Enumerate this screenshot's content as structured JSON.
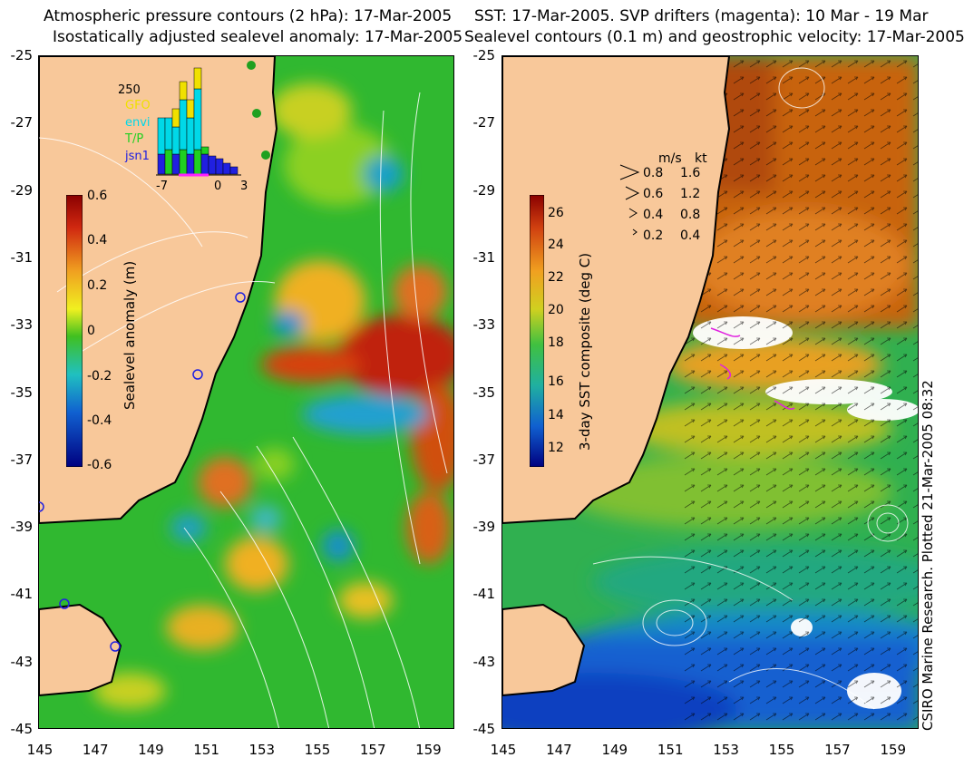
{
  "left_panel": {
    "title_line1": "Atmospheric pressure contours (2 hPa): 17-Mar-2005",
    "title_line2": "Isostatically adjusted sealevel anomaly: 17-Mar-2005",
    "colorbar_label": "Sealevel anomaly (m)",
    "colorbar_ticks": [
      "0.6",
      "0.4",
      "0.2",
      "0",
      "-0.2",
      "-0.4",
      "-0.6"
    ],
    "inset": {
      "ymax_label": "250",
      "legend": [
        {
          "name": "GFO",
          "color": "#f0e000"
        },
        {
          "name": "envi",
          "color": "#00d8e8"
        },
        {
          "name": "T/P",
          "color": "#20d020"
        },
        {
          "name": "jsn1",
          "color": "#2020e0"
        }
      ],
      "x_ticks": [
        "-7",
        "0",
        "3"
      ]
    }
  },
  "right_panel": {
    "title_line1": "SST: 17-Mar-2005. SVP drifters (magenta): 10 Mar - 19 Mar",
    "title_line2": "Sealevel contours (0.1 m) and geostrophic velocity: 17-Mar-2005.",
    "colorbar_label": "3-day SST composite (deg C)",
    "colorbar_ticks": [
      "26",
      "24",
      "22",
      "20",
      "18",
      "16",
      "14",
      "12"
    ],
    "velocity_legend": {
      "header_ms": "m/s",
      "header_kt": "kt",
      "rows": [
        {
          "ms": "0.8",
          "kt": "1.6"
        },
        {
          "ms": "0.6",
          "kt": "1.2"
        },
        {
          "ms": "0.4",
          "kt": "0.8"
        },
        {
          "ms": "0.2",
          "kt": "0.4"
        }
      ]
    },
    "credit": "CSIRO Marine Research. Plotted 21-Mar-2005 08:32"
  },
  "axes": {
    "y_ticks": [
      "-25",
      "-27",
      "-29",
      "-31",
      "-33",
      "-35",
      "-37",
      "-39",
      "-41",
      "-43",
      "-45"
    ],
    "x_ticks": [
      "145",
      "147",
      "149",
      "151",
      "153",
      "155",
      "157",
      "159"
    ]
  },
  "colors": {
    "land": "#f8c89a",
    "ssh_green": "#28b428",
    "sst_orange": "#c86410"
  }
}
